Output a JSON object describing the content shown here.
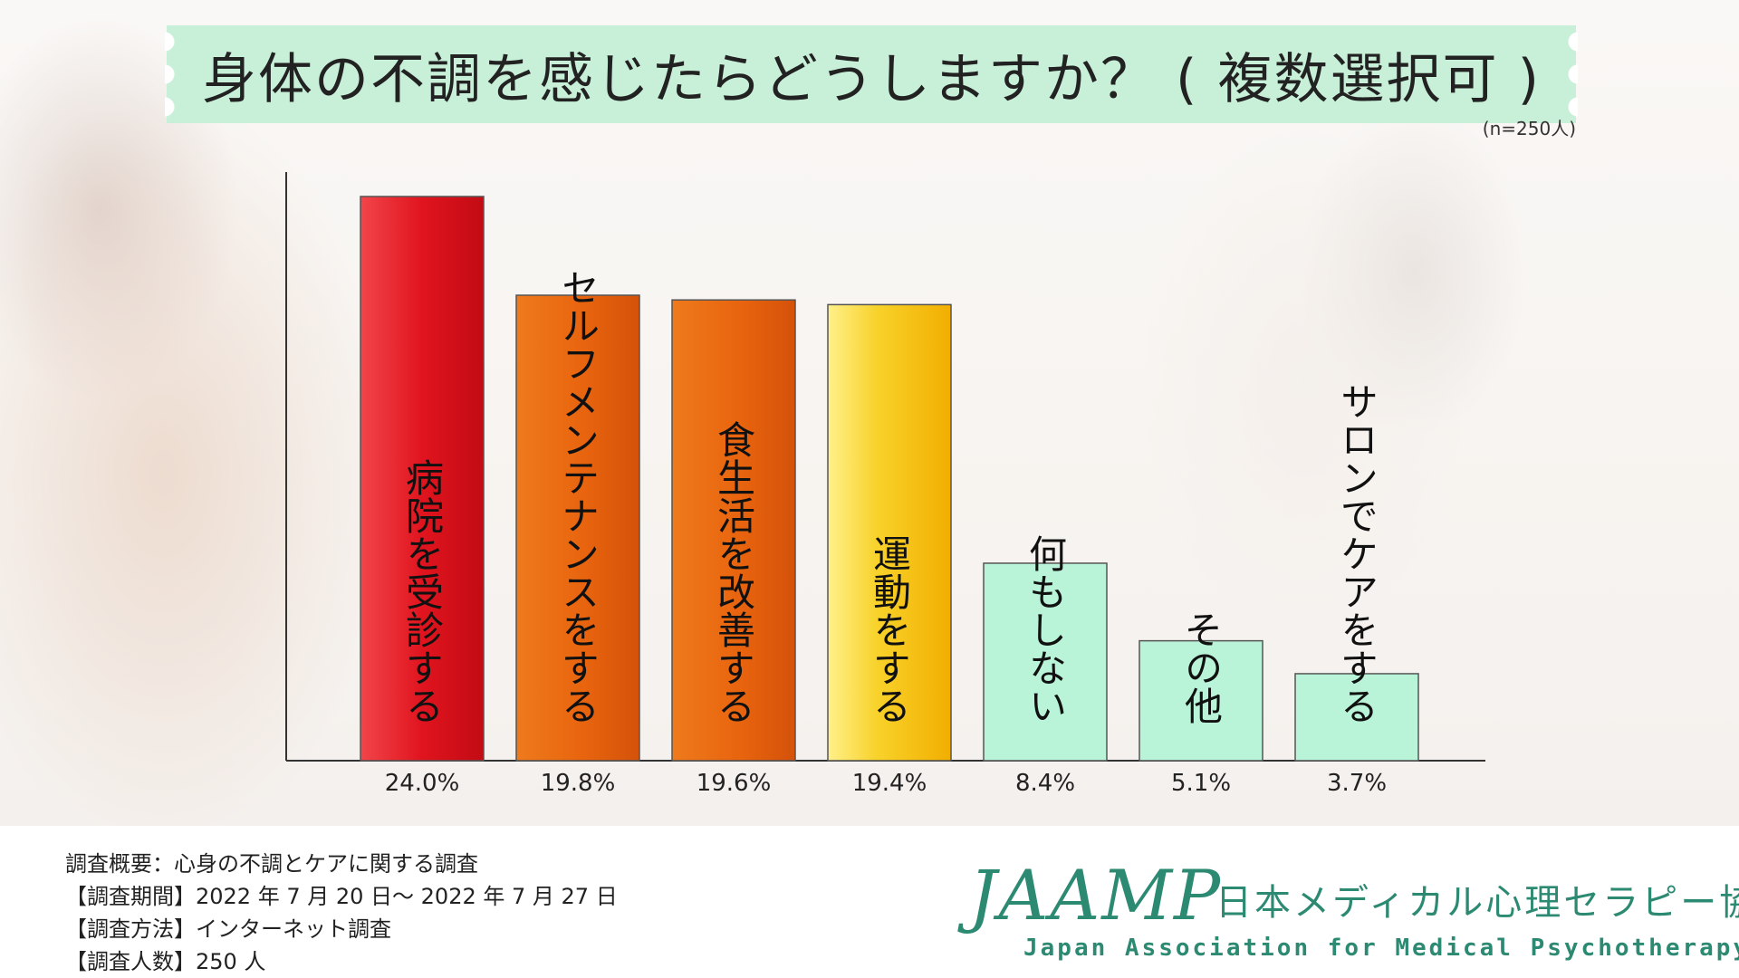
{
  "header": {
    "title": "身体の不調を感じたらどうしますか？ ( 複数選択可 )",
    "sample_size": "(n=250人)"
  },
  "colors": {
    "banner": "#c8f0d8",
    "red": "#e0141e",
    "orange": "#e8640e",
    "yellow": "#f6c20c",
    "mint": "#b9f3d8"
  },
  "chart_data": {
    "type": "bar",
    "categories": [
      "病院を受診する",
      "セルフメンテナンスをする",
      "食生活を改善する",
      "運動をする",
      "何もしない",
      "その他",
      "サロンでケアをする"
    ],
    "values": [
      24.0,
      19.8,
      19.6,
      19.4,
      8.4,
      5.1,
      3.7
    ],
    "value_labels": [
      "24.0%",
      "19.8%",
      "19.6%",
      "19.4%",
      "8.4%",
      "5.1%",
      "3.7%"
    ],
    "bar_colors": [
      "red",
      "orange",
      "orange",
      "yellow",
      "mint",
      "mint",
      "mint"
    ],
    "ylim": [
      0,
      24.5
    ]
  },
  "footer": {
    "notes": [
      "調査概要：心身の不調とケアに関する調査",
      "【調査期間】2022 年 7 月 20 日～ 2022 年 7 月 27 日",
      "【調査方法】インターネット調査",
      "【調査人数】250 人"
    ]
  },
  "logo": {
    "mark": "JAAMP",
    "name_ja": "日本メディカル心理セラピー協会",
    "name_en": "Japan Association for Medical Psychotherapy"
  }
}
